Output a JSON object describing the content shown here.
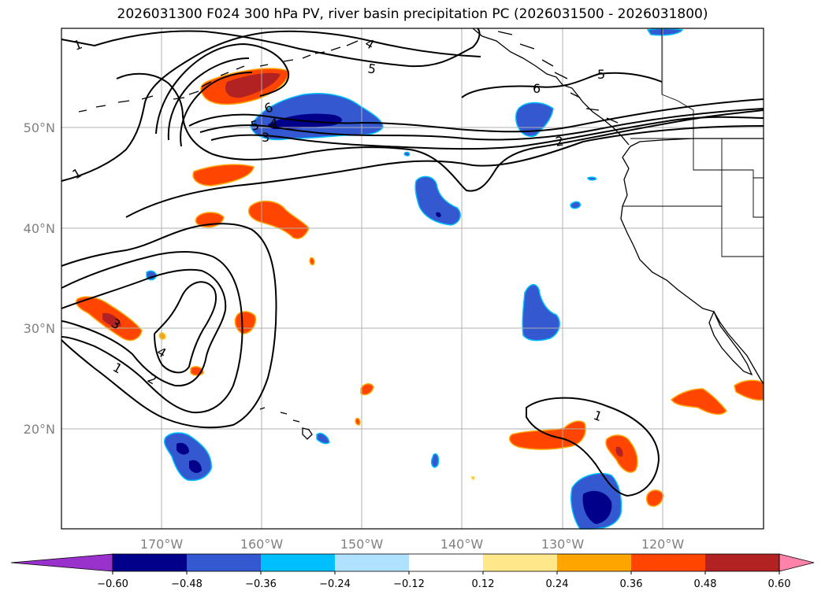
{
  "title": "2026031300 F024 300 hPa PV, river basin precipitation PC (2026031500 - 2026031800)",
  "lat_labels": [
    "50°N",
    "40°N",
    "30°N",
    "20°N"
  ],
  "lon_labels": [
    "170°W",
    "160°W",
    "150°W",
    "140°W",
    "130°W",
    "120°W"
  ],
  "colorbar": {
    "levels": [
      "−0.60",
      "−0.48",
      "−0.36",
      "−0.24",
      "−0.12",
      "0.12",
      "0.24",
      "0.36",
      "0.48",
      "0.60"
    ],
    "colors": [
      "#9932cc",
      "#00008b",
      "#3358cf",
      "#00bfff",
      "#b0e2ff",
      "#ffffff",
      "#ffe78a",
      "#ffa500",
      "#ff4500",
      "#b22222",
      "#ff82ab"
    ]
  },
  "pv_contour_labels": [
    "1",
    "1",
    "4",
    "5",
    "5",
    "6",
    "6",
    "5",
    "4",
    "3",
    "2",
    "3",
    "4",
    "1",
    "2",
    "1"
  ],
  "colors": {
    "pv_contour": "#000000",
    "coastline": "#000000",
    "gridline": "#b0b0b0"
  }
}
